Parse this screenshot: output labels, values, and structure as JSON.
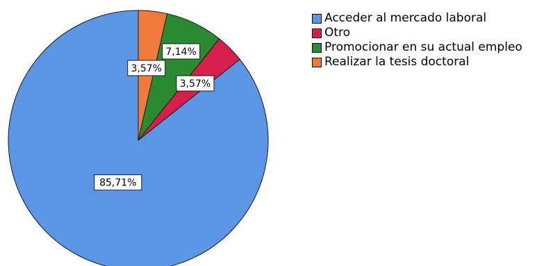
{
  "chart_data": {
    "type": "pie",
    "title": "",
    "start_angle": "12 o'clock",
    "direction": "counterclockwise",
    "legend_position": "top-right",
    "slices": [
      {
        "label": "Acceder al mercado laboral",
        "value": 85.71,
        "value_label": "85,71%",
        "color": "#5b96e4"
      },
      {
        "label": "Otro",
        "value": 3.57,
        "value_label": "3,57%",
        "color": "#d71f4e"
      },
      {
        "label": "Promocionar en su actual empleo",
        "value": 7.14,
        "value_label": "7,14%",
        "color": "#2a8a30"
      },
      {
        "label": "Realizar la tesis doctoral",
        "value": 3.57,
        "value_label": "3,57%",
        "color": "#f07a3b"
      }
    ]
  }
}
